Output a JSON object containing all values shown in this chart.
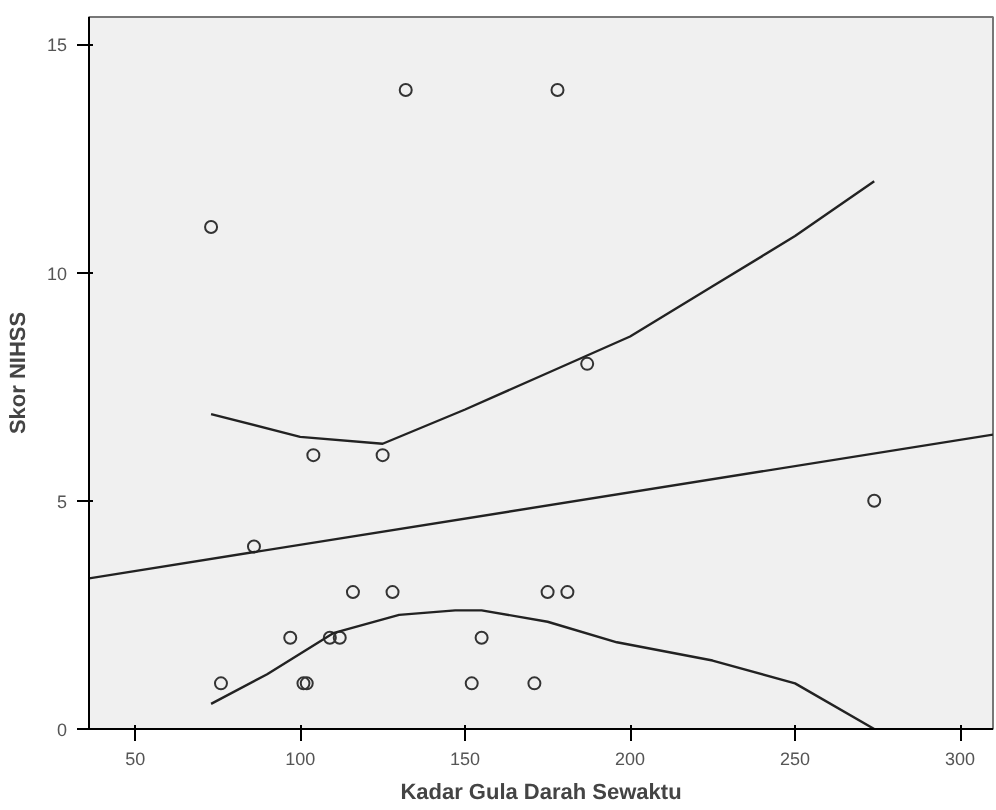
{
  "chart_data": {
    "type": "scatter",
    "xlabel": "Kadar Gula Darah Sewaktu",
    "ylabel": "Skor NIHSS",
    "xlim": [
      36,
      310
    ],
    "ylim": [
      0,
      15.6
    ],
    "xticks": [
      50,
      100,
      150,
      200,
      250,
      300
    ],
    "yticks": [
      0,
      5,
      10,
      15
    ],
    "grid": false,
    "series": [
      {
        "marker": "circle",
        "color": "#333333",
        "x": [
          73,
          132,
          178,
          187,
          104,
          125,
          86,
          274,
          116,
          128,
          175,
          181,
          97,
          109,
          112,
          155,
          76,
          101,
          102,
          152,
          171
        ],
        "values": [
          11,
          14,
          14,
          8,
          6,
          6,
          4,
          5,
          3,
          3,
          3,
          3,
          2,
          2,
          2,
          2,
          1,
          1,
          1,
          1,
          1
        ]
      },
      {
        "type": "line",
        "marker": "none",
        "color": "#222222",
        "x": [
          36,
          310
        ],
        "values": [
          3.3,
          6.45
        ]
      },
      {
        "type": "line",
        "marker": "none",
        "color": "#222222",
        "x": [
          73,
          100,
          125,
          150,
          175,
          200,
          225,
          250,
          274
        ],
        "values": [
          6.9,
          6.4,
          6.25,
          7.0,
          7.8,
          8.6,
          9.7,
          10.8,
          12.0
        ]
      },
      {
        "type": "line",
        "marker": "none",
        "color": "#222222",
        "x": [
          73,
          90,
          110,
          130,
          147,
          155,
          175,
          196,
          225,
          250,
          274
        ],
        "values": [
          0.55,
          1.2,
          2.1,
          2.5,
          2.6,
          2.6,
          2.35,
          1.9,
          1.5,
          1.0,
          0
        ]
      }
    ]
  }
}
